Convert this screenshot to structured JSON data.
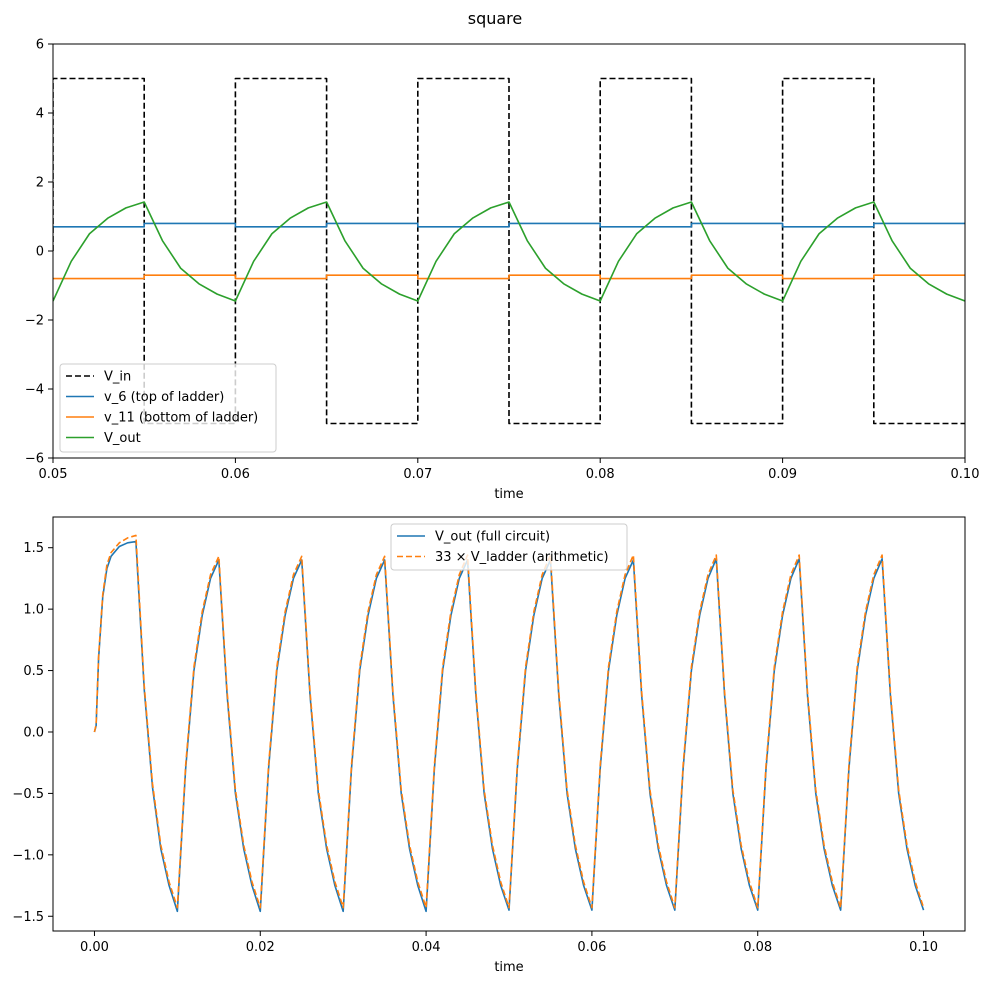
{
  "figure": {
    "title": "square"
  },
  "chart_data": [
    {
      "type": "line",
      "title": "",
      "xlabel": "time",
      "ylabel": "",
      "xlim": [
        0.05,
        0.1
      ],
      "ylim": [
        -6,
        6
      ],
      "grid": false,
      "legend_position": "lower-left",
      "x_ticks": [
        "0.05",
        "0.06",
        "0.07",
        "0.08",
        "0.09",
        "0.10"
      ],
      "y_ticks": [
        "−6",
        "−4",
        "−2",
        "0",
        "2",
        "4",
        "6"
      ],
      "series": [
        {
          "name": "V_in",
          "color": "#000000",
          "style": "dashed",
          "x": [
            0.05,
            0.05,
            0.055,
            0.055,
            0.06,
            0.06,
            0.065,
            0.065,
            0.07,
            0.07,
            0.075,
            0.075,
            0.08,
            0.08,
            0.085,
            0.085,
            0.09,
            0.09,
            0.095,
            0.095,
            0.1
          ],
          "y": [
            0,
            5,
            5,
            -5,
            -5,
            5,
            5,
            -5,
            -5,
            5,
            5,
            -5,
            -5,
            5,
            5,
            -5,
            -5,
            5,
            5,
            -5,
            -5
          ]
        },
        {
          "name": "v_6 (top of ladder)",
          "color": "#1f77b4",
          "style": "solid",
          "x": [
            0.05,
            0.055,
            0.055,
            0.06,
            0.06,
            0.065,
            0.065,
            0.07,
            0.07,
            0.075,
            0.075,
            0.08,
            0.08,
            0.085,
            0.085,
            0.09,
            0.09,
            0.095,
            0.095,
            0.1
          ],
          "y": [
            0.7,
            0.7,
            0.8,
            0.8,
            0.7,
            0.7,
            0.8,
            0.8,
            0.7,
            0.7,
            0.8,
            0.8,
            0.7,
            0.7,
            0.8,
            0.8,
            0.7,
            0.7,
            0.8,
            0.8
          ]
        },
        {
          "name": "v_11 (bottom of ladder)",
          "color": "#ff7f0e",
          "style": "solid",
          "x": [
            0.05,
            0.055,
            0.055,
            0.06,
            0.06,
            0.065,
            0.065,
            0.07,
            0.07,
            0.075,
            0.075,
            0.08,
            0.08,
            0.085,
            0.085,
            0.09,
            0.09,
            0.095,
            0.095,
            0.1
          ],
          "y": [
            -0.8,
            -0.8,
            -0.7,
            -0.7,
            -0.8,
            -0.8,
            -0.7,
            -0.7,
            -0.8,
            -0.8,
            -0.7,
            -0.7,
            -0.8,
            -0.8,
            -0.7,
            -0.7,
            -0.8,
            -0.8,
            -0.7,
            -0.7
          ]
        },
        {
          "name": "V_out",
          "color": "#2ca02c",
          "style": "solid",
          "x": [
            0.05,
            0.051,
            0.052,
            0.053,
            0.054,
            0.055,
            0.056,
            0.057,
            0.058,
            0.059,
            0.06,
            0.061,
            0.062,
            0.063,
            0.064,
            0.065,
            0.066,
            0.067,
            0.068,
            0.069,
            0.07,
            0.071,
            0.072,
            0.073,
            0.074,
            0.075,
            0.076,
            0.077,
            0.078,
            0.079,
            0.08,
            0.081,
            0.082,
            0.083,
            0.084,
            0.085,
            0.086,
            0.087,
            0.088,
            0.089,
            0.09,
            0.091,
            0.092,
            0.093,
            0.094,
            0.095,
            0.096,
            0.097,
            0.098,
            0.099,
            0.1
          ],
          "y": [
            -1.45,
            -0.3,
            0.5,
            0.95,
            1.25,
            1.42,
            0.3,
            -0.5,
            -0.95,
            -1.25,
            -1.45,
            -0.3,
            0.5,
            0.95,
            1.25,
            1.42,
            0.3,
            -0.5,
            -0.95,
            -1.25,
            -1.45,
            -0.3,
            0.5,
            0.95,
            1.25,
            1.42,
            0.3,
            -0.5,
            -0.95,
            -1.25,
            -1.45,
            -0.3,
            0.5,
            0.95,
            1.25,
            1.42,
            0.3,
            -0.5,
            -0.95,
            -1.25,
            -1.45,
            -0.3,
            0.5,
            0.95,
            1.25,
            1.42,
            0.3,
            -0.5,
            -0.95,
            -1.25,
            -1.45
          ]
        }
      ]
    },
    {
      "type": "line",
      "title": "",
      "xlabel": "time",
      "ylabel": "",
      "xlim": [
        -0.005,
        0.105
      ],
      "ylim": [
        -1.62,
        1.75
      ],
      "grid": false,
      "legend_position": "top-center",
      "x_ticks": [
        "0.00",
        "0.02",
        "0.04",
        "0.06",
        "0.08",
        "0.10"
      ],
      "y_ticks": [
        "−1.5",
        "−1.0",
        "−0.5",
        "0.0",
        "0.5",
        "1.0",
        "1.5"
      ],
      "series": [
        {
          "name": "V_out (full circuit)",
          "color": "#1f77b4",
          "style": "solid",
          "x": [
            0,
            0.0002,
            0.0005,
            0.001,
            0.0015,
            0.002,
            0.003,
            0.004,
            0.005,
            0.006,
            0.007,
            0.008,
            0.009,
            0.01,
            0.011,
            0.012,
            0.013,
            0.014,
            0.015,
            0.016,
            0.017,
            0.018,
            0.019,
            0.02,
            0.021,
            0.022,
            0.023,
            0.024,
            0.025,
            0.026,
            0.027,
            0.028,
            0.029,
            0.03,
            0.031,
            0.032,
            0.033,
            0.034,
            0.035,
            0.036,
            0.037,
            0.038,
            0.039,
            0.04,
            0.041,
            0.042,
            0.043,
            0.044,
            0.045,
            0.046,
            0.047,
            0.048,
            0.049,
            0.05,
            0.051,
            0.052,
            0.053,
            0.054,
            0.055,
            0.056,
            0.057,
            0.058,
            0.059,
            0.06,
            0.061,
            0.062,
            0.063,
            0.064,
            0.065,
            0.066,
            0.067,
            0.068,
            0.069,
            0.07,
            0.071,
            0.072,
            0.073,
            0.074,
            0.075,
            0.076,
            0.077,
            0.078,
            0.079,
            0.08,
            0.081,
            0.082,
            0.083,
            0.084,
            0.085,
            0.086,
            0.087,
            0.088,
            0.089,
            0.09,
            0.091,
            0.092,
            0.093,
            0.094,
            0.095,
            0.096,
            0.097,
            0.098,
            0.099,
            0.1
          ],
          "y": [
            0,
            0.05,
            0.6,
            1.1,
            1.33,
            1.43,
            1.51,
            1.54,
            1.55,
            0.35,
            -0.45,
            -0.95,
            -1.25,
            -1.46,
            -0.3,
            0.5,
            0.95,
            1.25,
            1.4,
            0.3,
            -0.5,
            -0.95,
            -1.25,
            -1.46,
            -0.3,
            0.5,
            0.95,
            1.25,
            1.4,
            0.3,
            -0.5,
            -0.95,
            -1.25,
            -1.46,
            -0.3,
            0.5,
            0.95,
            1.25,
            1.4,
            0.3,
            -0.5,
            -0.95,
            -1.25,
            -1.46,
            -0.3,
            0.5,
            0.95,
            1.25,
            1.4,
            0.3,
            -0.5,
            -0.95,
            -1.25,
            -1.45,
            -0.3,
            0.5,
            0.95,
            1.25,
            1.4,
            0.3,
            -0.5,
            -0.95,
            -1.25,
            -1.45,
            -0.3,
            0.5,
            0.95,
            1.25,
            1.4,
            0.3,
            -0.5,
            -0.95,
            -1.25,
            -1.45,
            -0.3,
            0.5,
            0.95,
            1.25,
            1.41,
            0.3,
            -0.5,
            -0.95,
            -1.25,
            -1.45,
            -0.3,
            0.5,
            0.95,
            1.25,
            1.41,
            0.3,
            -0.5,
            -0.95,
            -1.25,
            -1.45,
            -0.3,
            0.5,
            0.95,
            1.25,
            1.41,
            0.3,
            -0.5,
            -0.95,
            -1.25,
            -1.45
          ]
        },
        {
          "name": "33 × V_ladder (arithmetic)",
          "color": "#ff7f0e",
          "style": "dashed",
          "x": [
            0,
            0.0002,
            0.0005,
            0.001,
            0.0015,
            0.002,
            0.003,
            0.004,
            0.005,
            0.006,
            0.007,
            0.008,
            0.009,
            0.01,
            0.011,
            0.012,
            0.013,
            0.014,
            0.015,
            0.016,
            0.017,
            0.018,
            0.019,
            0.02,
            0.021,
            0.022,
            0.023,
            0.024,
            0.025,
            0.026,
            0.027,
            0.028,
            0.029,
            0.03,
            0.031,
            0.032,
            0.033,
            0.034,
            0.035,
            0.036,
            0.037,
            0.038,
            0.039,
            0.04,
            0.041,
            0.042,
            0.043,
            0.044,
            0.045,
            0.046,
            0.047,
            0.048,
            0.049,
            0.05,
            0.051,
            0.052,
            0.053,
            0.054,
            0.055,
            0.056,
            0.057,
            0.058,
            0.059,
            0.06,
            0.061,
            0.062,
            0.063,
            0.064,
            0.065,
            0.066,
            0.067,
            0.068,
            0.069,
            0.07,
            0.071,
            0.072,
            0.073,
            0.074,
            0.075,
            0.076,
            0.077,
            0.078,
            0.079,
            0.08,
            0.081,
            0.082,
            0.083,
            0.084,
            0.085,
            0.086,
            0.087,
            0.088,
            0.089,
            0.09,
            0.091,
            0.092,
            0.093,
            0.094,
            0.095,
            0.096,
            0.097,
            0.098,
            0.099,
            0.1
          ],
          "y": [
            0,
            0.06,
            0.62,
            1.12,
            1.36,
            1.46,
            1.54,
            1.58,
            1.6,
            0.38,
            -0.42,
            -0.92,
            -1.22,
            -1.43,
            -0.27,
            0.53,
            0.98,
            1.28,
            1.43,
            0.33,
            -0.47,
            -0.92,
            -1.22,
            -1.43,
            -0.27,
            0.53,
            0.98,
            1.28,
            1.43,
            0.33,
            -0.47,
            -0.92,
            -1.22,
            -1.43,
            -0.27,
            0.53,
            0.98,
            1.28,
            1.43,
            0.33,
            -0.47,
            -0.92,
            -1.22,
            -1.43,
            -0.27,
            0.53,
            0.98,
            1.28,
            1.44,
            0.33,
            -0.47,
            -0.92,
            -1.22,
            -1.43,
            -0.27,
            0.53,
            0.98,
            1.28,
            1.44,
            0.33,
            -0.47,
            -0.92,
            -1.22,
            -1.43,
            -0.27,
            0.53,
            0.98,
            1.28,
            1.44,
            0.33,
            -0.47,
            -0.92,
            -1.22,
            -1.43,
            -0.27,
            0.53,
            0.98,
            1.28,
            1.44,
            0.33,
            -0.47,
            -0.92,
            -1.22,
            -1.43,
            -0.27,
            0.53,
            0.98,
            1.28,
            1.44,
            0.33,
            -0.47,
            -0.92,
            -1.22,
            -1.43,
            -0.27,
            0.53,
            0.98,
            1.28,
            1.44,
            0.33,
            -0.47,
            -0.92,
            -1.22,
            -1.43
          ]
        }
      ]
    }
  ]
}
